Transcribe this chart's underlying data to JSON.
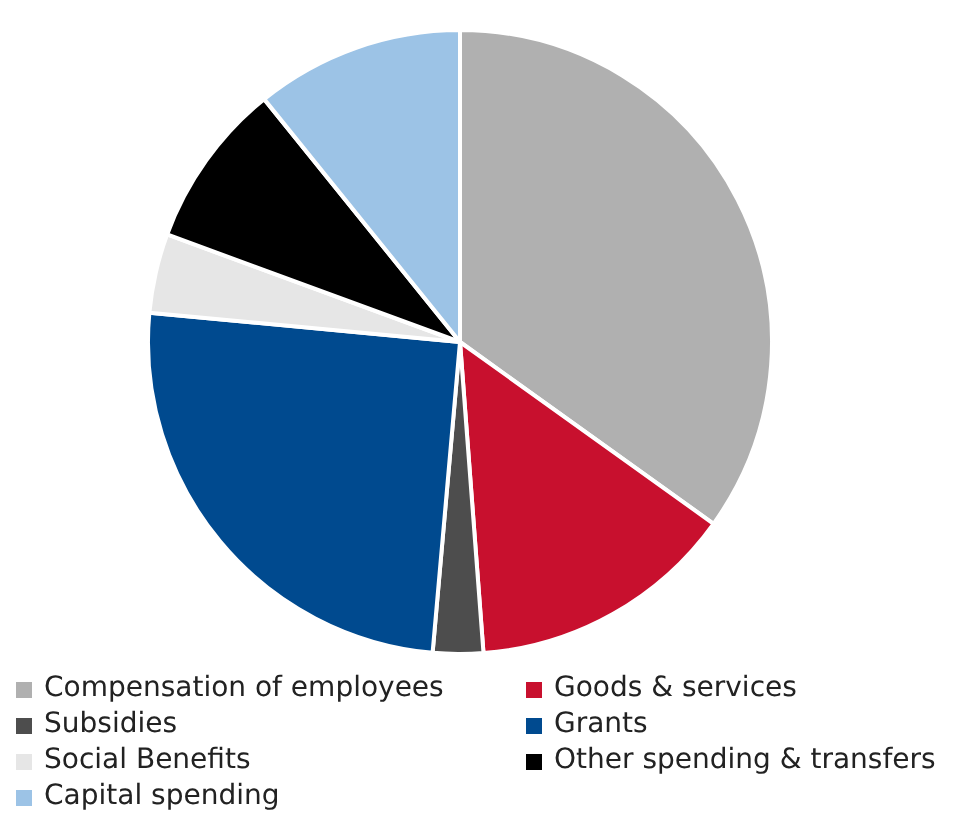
{
  "chart_data": {
    "type": "pie",
    "categories": [
      "Compensation of employees",
      "Goods & services",
      "Subsidies",
      "Grants",
      "Social Benefits",
      "Other spending & transfers",
      "Capital spending"
    ],
    "values": [
      34.9,
      13.9,
      2.6,
      25.1,
      4.1,
      8.6,
      10.8
    ],
    "colors": [
      "#b0b0b0",
      "#c8102e",
      "#4d4d4d",
      "#004a8f",
      "#e6e6e6",
      "#000000",
      "#9cc3e6"
    ],
    "legend": "bottom"
  }
}
